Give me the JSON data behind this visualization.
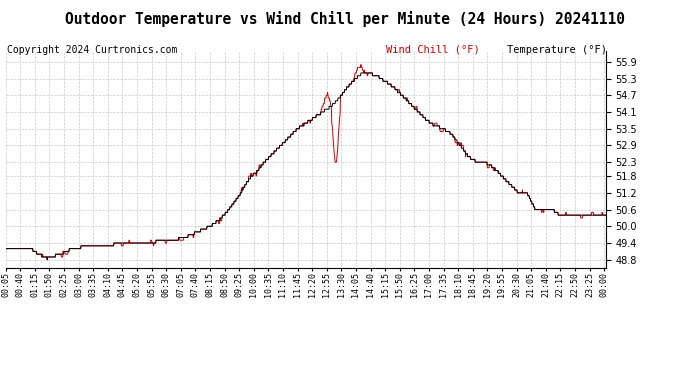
{
  "title": "Outdoor Temperature vs Wind Chill per Minute (24 Hours) 20241110",
  "copyright": "Copyright 2024 Curtronics.com",
  "legend_wind_chill": "Wind Chill (°F)",
  "legend_temperature": "Temperature (°F)",
  "wind_chill_color": "#cc0000",
  "temperature_color": "#000000",
  "background_color": "#ffffff",
  "grid_color": "#bbbbbb",
  "ylim": [
    48.5,
    56.3
  ],
  "yticks": [
    48.8,
    49.4,
    50.0,
    50.6,
    51.2,
    51.8,
    52.3,
    52.9,
    53.5,
    54.1,
    54.7,
    55.3,
    55.9
  ],
  "title_fontsize": 10.5,
  "copyright_fontsize": 7,
  "legend_fontsize": 7.5,
  "tick_fontsize": 6,
  "total_minutes": 1440,
  "xtick_step_minutes": 35,
  "xtick_label_offset": 5
}
